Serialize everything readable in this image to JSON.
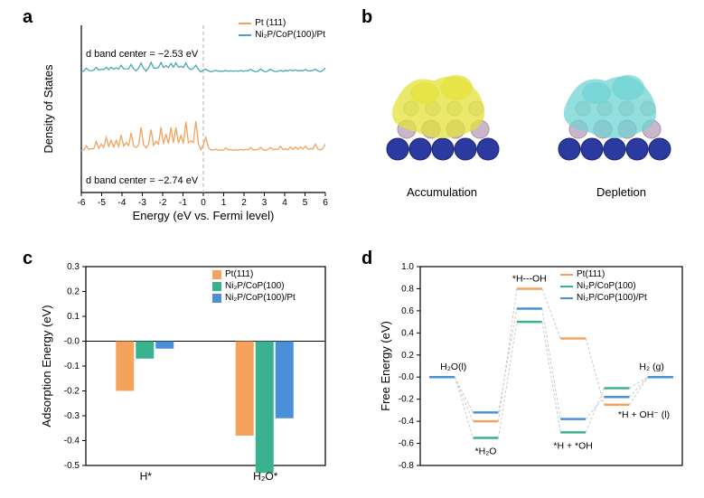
{
  "panel_a": {
    "label": "a",
    "x_axis_label": "Energy (eV vs. Fermi level)",
    "y_axis_label": "Density of States",
    "xlim": [
      -6,
      6
    ],
    "xtick_step": 1,
    "series": [
      {
        "name": "Pt (111)",
        "color": "#f5a25d",
        "annotation": "d band center = −2.74 eV",
        "baseline": 0.25,
        "amps": [
          0.02,
          0.03,
          0.05,
          0.06,
          0.08,
          0.1,
          0.09,
          0.1,
          0.11,
          0.12,
          0.11,
          0.13,
          0.14,
          0.15,
          0.13,
          0.16,
          0.16,
          0.17,
          0.19,
          0.18,
          0.17,
          0.19,
          0.2,
          0.18,
          0.14,
          0.08,
          0.02,
          0.01,
          0.01,
          0.02,
          0.01,
          0.01,
          0.01,
          0.02,
          0.02,
          0.03,
          0.02,
          0.03,
          0.02,
          0.03,
          0.03,
          0.02,
          0.03,
          0.03,
          0.04,
          0.03,
          0.04,
          0.04,
          0.05,
          0.04
        ]
      },
      {
        "name": "Ni₂P/CoP(100)/Pt",
        "color": "#4aa6b5",
        "annotation": "d band center = −2.53 eV",
        "baseline": 0.72,
        "amps": [
          0.03,
          0.04,
          0.05,
          0.05,
          0.06,
          0.06,
          0.07,
          0.07,
          0.08,
          0.08,
          0.08,
          0.09,
          0.09,
          0.1,
          0.1,
          0.11,
          0.11,
          0.11,
          0.12,
          0.12,
          0.11,
          0.1,
          0.09,
          0.07,
          0.05,
          0.03,
          0.02,
          0.02,
          0.02,
          0.02,
          0.02,
          0.02,
          0.02,
          0.03,
          0.03,
          0.02,
          0.03,
          0.03,
          0.03,
          0.02,
          0.02,
          0.03,
          0.03,
          0.03,
          0.03,
          0.03,
          0.04,
          0.03,
          0.04,
          0.04
        ]
      }
    ],
    "fermi_line_color": "#cccccc"
  },
  "panel_b": {
    "label": "b",
    "left_caption": "Accumulation",
    "right_caption": "Depletion",
    "atom_colors": {
      "co": "#2b3a9e",
      "ni": "#c9b6c9",
      "p": "#d8d8d0"
    },
    "iso_colors": {
      "accumulation": "#e4e23a",
      "depletion": "#6fd3d3"
    }
  },
  "panel_c": {
    "label": "c",
    "x_axis_categories": [
      "H*",
      "H₂O*"
    ],
    "y_axis_label": "Adsorption Energy (eV)",
    "ylim": [
      -0.5,
      0.3
    ],
    "ytick_step": 0.1,
    "series": [
      {
        "name": "Pt(111)",
        "color": "#f5a25d"
      },
      {
        "name": "Ni₂P/CoP(100)",
        "color": "#3bb28f"
      },
      {
        "name": "Ni₂P/CoP(100)/Pt",
        "color": "#4a90d9"
      }
    ],
    "data": {
      "H*": [
        -0.2,
        -0.07,
        -0.03
      ],
      "H2O*": [
        -0.38,
        -0.53,
        -0.31
      ]
    }
  },
  "panel_d": {
    "label": "d",
    "x_states": [
      "H₂O(l)",
      "*H₂O",
      "*H---OH",
      "*H + *OH",
      "*H + OH⁻ (l)",
      "H₂ (g)"
    ],
    "y_axis_label": "Free Energy (eV)",
    "ylim": [
      -0.8,
      1.0
    ],
    "ytick_step": 0.2,
    "series": [
      {
        "name": "Pt(111)",
        "color": "#f5a25d",
        "values": [
          0.0,
          -0.4,
          0.8,
          0.35,
          -0.25,
          0.0
        ]
      },
      {
        "name": "Ni₂P/CoP(100)",
        "color": "#3bb28f",
        "values": [
          0.0,
          -0.55,
          0.5,
          -0.5,
          -0.1,
          0.0
        ]
      },
      {
        "name": "Ni₂P/CoP(100)/Pt",
        "color": "#4a90d9",
        "values": [
          0.0,
          -0.32,
          0.62,
          -0.38,
          -0.18,
          0.0
        ]
      }
    ],
    "connector_color": "#cccccc"
  }
}
